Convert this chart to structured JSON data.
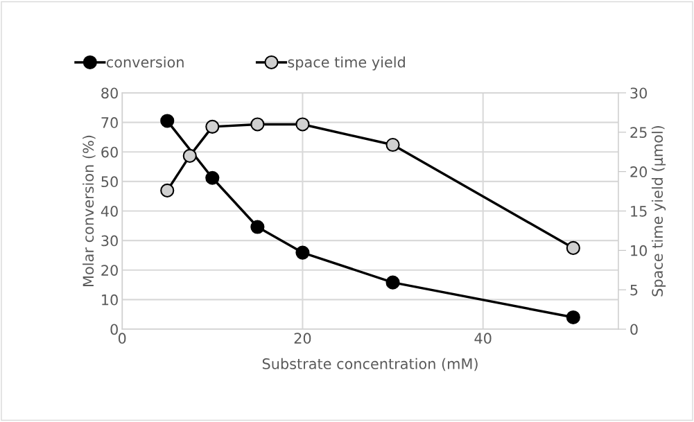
{
  "chart_data": {
    "type": "line",
    "xlabel": "Substrate concentration (mM)",
    "ylabel": "Molar conversion (%)",
    "y2label": "Space time yield (µmol)",
    "xlim": [
      0,
      55
    ],
    "xticks": [
      0,
      20,
      40
    ],
    "ylim": [
      0,
      80
    ],
    "yticks": [
      0,
      10,
      20,
      30,
      40,
      50,
      60,
      70,
      80
    ],
    "y2lim": [
      0,
      30
    ],
    "y2ticks": [
      0,
      5,
      10,
      15,
      20,
      25,
      30
    ],
    "grid": true,
    "legend": "top",
    "marker": "circle",
    "line_style": "solid",
    "series": [
      {
        "name": "conversion",
        "color": "#000000",
        "x": [
          5,
          10,
          15,
          20,
          30,
          50
        ],
        "values": [
          70.5,
          51.2,
          34.6,
          25.9,
          15.8,
          4.0
        ]
      },
      {
        "name": "space time yield",
        "color": "#d0d0d0",
        "axis": "y2",
        "x": [
          5,
          7.5,
          10,
          15,
          20,
          30,
          50
        ],
        "values": [
          17.6,
          22.0,
          25.7,
          26.0,
          26.0,
          23.4,
          10.3
        ]
      }
    ]
  }
}
